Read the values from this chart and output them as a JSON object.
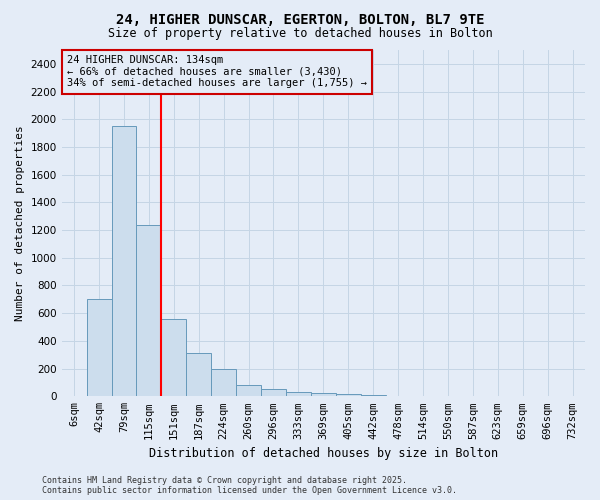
{
  "title": "24, HIGHER DUNSCAR, EGERTON, BOLTON, BL7 9TE",
  "subtitle": "Size of property relative to detached houses in Bolton",
  "xlabel": "Distribution of detached houses by size in Bolton",
  "ylabel": "Number of detached properties",
  "footnote": "Contains HM Land Registry data © Crown copyright and database right 2025.\nContains public sector information licensed under the Open Government Licence v3.0.",
  "bar_labels": [
    "6sqm",
    "42sqm",
    "79sqm",
    "115sqm",
    "151sqm",
    "187sqm",
    "224sqm",
    "260sqm",
    "296sqm",
    "333sqm",
    "369sqm",
    "405sqm",
    "442sqm",
    "478sqm",
    "514sqm",
    "550sqm",
    "587sqm",
    "623sqm",
    "659sqm",
    "696sqm",
    "732sqm"
  ],
  "bar_values": [
    0,
    700,
    1950,
    1240,
    560,
    310,
    200,
    85,
    50,
    30,
    25,
    15,
    10,
    5,
    5,
    3,
    2,
    2,
    1,
    1,
    0
  ],
  "bar_color": "#ccdded",
  "bar_edge_color": "#6699bb",
  "ylim": [
    0,
    2500
  ],
  "yticks": [
    0,
    200,
    400,
    600,
    800,
    1000,
    1200,
    1400,
    1600,
    1800,
    2000,
    2200,
    2400
  ],
  "red_line_x": 3.5,
  "annotation_text": "24 HIGHER DUNSCAR: 134sqm\n← 66% of detached houses are smaller (3,430)\n34% of semi-detached houses are larger (1,755) →",
  "annotation_box_edgecolor": "#cc0000",
  "grid_color": "#c5d5e5",
  "bg_color": "#e4ecf7",
  "title_fontsize": 10,
  "subtitle_fontsize": 8.5,
  "ylabel_fontsize": 8,
  "xlabel_fontsize": 8.5,
  "annot_fontsize": 7.5,
  "footnote_fontsize": 6,
  "tick_fontsize": 7.5
}
